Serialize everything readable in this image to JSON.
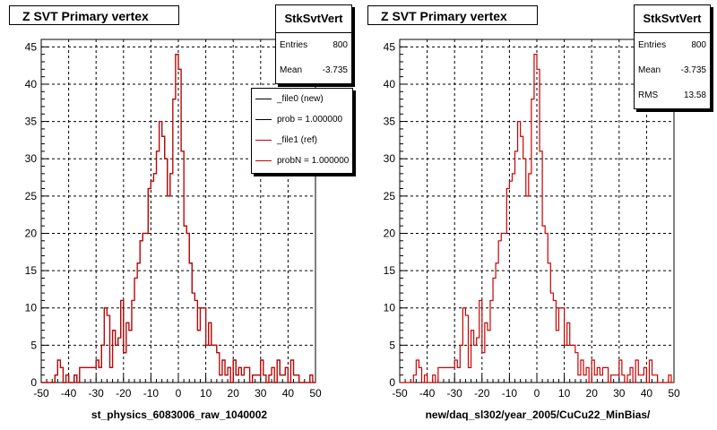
{
  "chart_data": [
    {
      "type": "bar",
      "title": "Z SVT Primary vertex",
      "xlabel": "st_physics_6083006_raw_1040002",
      "xlim": [
        -50,
        50
      ],
      "ylim": [
        0,
        46
      ],
      "x_ticks": [
        -50,
        -40,
        -30,
        -20,
        -10,
        0,
        10,
        20,
        30,
        40,
        50
      ],
      "y_ticks": [
        0,
        5,
        10,
        15,
        20,
        25,
        30,
        35,
        40,
        45
      ],
      "grid": true,
      "stats": {
        "name": "StkSvtVert",
        "entries_label": "Entries",
        "entries": "800",
        "mean_label": "Mean",
        "mean": "-3.735"
      },
      "legend": {
        "placement": "top-right",
        "entries": [
          {
            "label": "_file0 (new)",
            "color": "#000000"
          },
          {
            "label": "prob = 1.000000",
            "color": "#000000"
          },
          {
            "label": "_file1 (ref)",
            "color": "#cc0000"
          },
          {
            "label": "probN = 1.000000",
            "color": "#cc0000"
          }
        ]
      },
      "series": [
        {
          "color": "#000000",
          "x": [
            -50,
            -45,
            -44,
            -43,
            -42,
            -41,
            -40,
            -39,
            -38,
            -37,
            -36,
            -35,
            -34,
            -33,
            -32,
            -31,
            -30,
            -29,
            -28,
            -27,
            -26,
            -25,
            -24,
            -23,
            -22,
            -21,
            -20,
            -19,
            -18,
            -17,
            -16,
            -15,
            -14,
            -13,
            -12,
            -11,
            -10,
            -9,
            -8,
            -7,
            -6,
            -5,
            -4,
            -3,
            -2,
            -1,
            0,
            1,
            2,
            3,
            4,
            5,
            6,
            7,
            8,
            9,
            10,
            11,
            12,
            13,
            14,
            15,
            16,
            17,
            18,
            19,
            20,
            21,
            22,
            23,
            24,
            25,
            26,
            27,
            28,
            29,
            30,
            31,
            32,
            33,
            34,
            35,
            36,
            37,
            38,
            39,
            40,
            41,
            42,
            43,
            44,
            45,
            46,
            47,
            48,
            49,
            50
          ],
          "y": [
            0,
            1,
            3,
            2,
            0,
            1,
            0,
            0,
            1,
            0,
            2,
            2,
            2,
            2,
            2,
            2,
            3,
            2,
            5,
            10,
            9,
            2,
            7,
            5,
            6,
            11,
            4,
            8,
            7,
            11,
            14,
            16,
            19,
            20,
            20,
            26,
            27,
            28,
            31,
            35,
            33,
            30,
            25,
            28,
            38,
            44,
            42,
            31,
            21,
            20,
            16,
            12,
            11,
            7,
            10,
            10,
            5,
            8,
            5,
            5,
            4,
            1,
            3,
            1,
            2,
            0,
            3,
            1,
            2,
            1,
            2,
            2,
            0,
            1,
            1,
            1,
            3,
            1,
            0,
            1,
            2,
            0,
            3,
            1,
            1,
            2,
            0,
            3,
            1,
            1,
            0,
            0,
            0,
            0,
            1,
            0,
            0
          ]
        },
        {
          "color": "#cc0000",
          "x": [
            -50,
            -45,
            -44,
            -43,
            -42,
            -41,
            -40,
            -39,
            -38,
            -37,
            -36,
            -35,
            -34,
            -33,
            -32,
            -31,
            -30,
            -29,
            -28,
            -27,
            -26,
            -25,
            -24,
            -23,
            -22,
            -21,
            -20,
            -19,
            -18,
            -17,
            -16,
            -15,
            -14,
            -13,
            -12,
            -11,
            -10,
            -9,
            -8,
            -7,
            -6,
            -5,
            -4,
            -3,
            -2,
            -1,
            0,
            1,
            2,
            3,
            4,
            5,
            6,
            7,
            8,
            9,
            10,
            11,
            12,
            13,
            14,
            15,
            16,
            17,
            18,
            19,
            20,
            21,
            22,
            23,
            24,
            25,
            26,
            27,
            28,
            29,
            30,
            31,
            32,
            33,
            34,
            35,
            36,
            37,
            38,
            39,
            40,
            41,
            42,
            43,
            44,
            45,
            46,
            47,
            48,
            49,
            50
          ],
          "y": [
            0,
            1,
            3,
            2,
            0,
            1,
            0,
            0,
            1,
            0,
            2,
            2,
            2,
            2,
            2,
            2,
            3,
            2,
            5,
            10,
            9,
            2,
            7,
            5,
            6,
            11,
            4,
            8,
            7,
            11,
            14,
            16,
            19,
            20,
            20,
            26,
            27,
            28,
            31,
            35,
            33,
            30,
            25,
            28,
            38,
            44,
            42,
            31,
            21,
            20,
            16,
            12,
            11,
            7,
            10,
            10,
            5,
            8,
            5,
            5,
            4,
            1,
            3,
            1,
            2,
            0,
            3,
            1,
            2,
            1,
            2,
            2,
            0,
            1,
            1,
            1,
            3,
            1,
            0,
            1,
            2,
            0,
            3,
            1,
            1,
            2,
            0,
            3,
            1,
            1,
            0,
            0,
            0,
            0,
            1,
            0,
            0
          ]
        }
      ]
    },
    {
      "type": "bar",
      "title": "Z SVT Primary vertex",
      "xlabel": "new/daq_sl302/year_2005/CuCu22_MinBias/",
      "xlim": [
        -50,
        50
      ],
      "ylim": [
        0,
        46
      ],
      "x_ticks": [
        -50,
        -40,
        -30,
        -20,
        -10,
        0,
        10,
        20,
        30,
        40,
        50
      ],
      "y_ticks": [
        0,
        5,
        10,
        15,
        20,
        25,
        30,
        35,
        40,
        45
      ],
      "grid": true,
      "stats": {
        "name": "StkSvtVert",
        "entries_label": "Entries",
        "entries": "800",
        "mean_label": "Mean",
        "mean": "-3.735",
        "rms_label": "RMS",
        "rms": "13.58"
      },
      "series": [
        {
          "color": "#cc0000",
          "x": [
            -50,
            -45,
            -44,
            -43,
            -42,
            -41,
            -40,
            -39,
            -38,
            -37,
            -36,
            -35,
            -34,
            -33,
            -32,
            -31,
            -30,
            -29,
            -28,
            -27,
            -26,
            -25,
            -24,
            -23,
            -22,
            -21,
            -20,
            -19,
            -18,
            -17,
            -16,
            -15,
            -14,
            -13,
            -12,
            -11,
            -10,
            -9,
            -8,
            -7,
            -6,
            -5,
            -4,
            -3,
            -2,
            -1,
            0,
            1,
            2,
            3,
            4,
            5,
            6,
            7,
            8,
            9,
            10,
            11,
            12,
            13,
            14,
            15,
            16,
            17,
            18,
            19,
            20,
            21,
            22,
            23,
            24,
            25,
            26,
            27,
            28,
            29,
            30,
            31,
            32,
            33,
            34,
            35,
            36,
            37,
            38,
            39,
            40,
            41,
            42,
            43,
            44,
            45,
            46,
            47,
            48,
            49,
            50
          ],
          "y": [
            0,
            1,
            3,
            2,
            0,
            1,
            0,
            0,
            1,
            0,
            2,
            2,
            2,
            2,
            2,
            2,
            3,
            2,
            5,
            10,
            9,
            2,
            7,
            5,
            6,
            11,
            4,
            8,
            7,
            11,
            14,
            16,
            19,
            20,
            20,
            26,
            27,
            28,
            31,
            35,
            33,
            30,
            25,
            28,
            38,
            44,
            42,
            31,
            21,
            20,
            16,
            12,
            11,
            7,
            10,
            10,
            5,
            8,
            5,
            5,
            4,
            1,
            3,
            1,
            2,
            0,
            3,
            1,
            2,
            1,
            2,
            2,
            0,
            1,
            1,
            1,
            3,
            1,
            0,
            1,
            2,
            0,
            3,
            1,
            1,
            2,
            0,
            3,
            1,
            1,
            0,
            0,
            0,
            0,
            1,
            0,
            0
          ]
        }
      ]
    }
  ]
}
